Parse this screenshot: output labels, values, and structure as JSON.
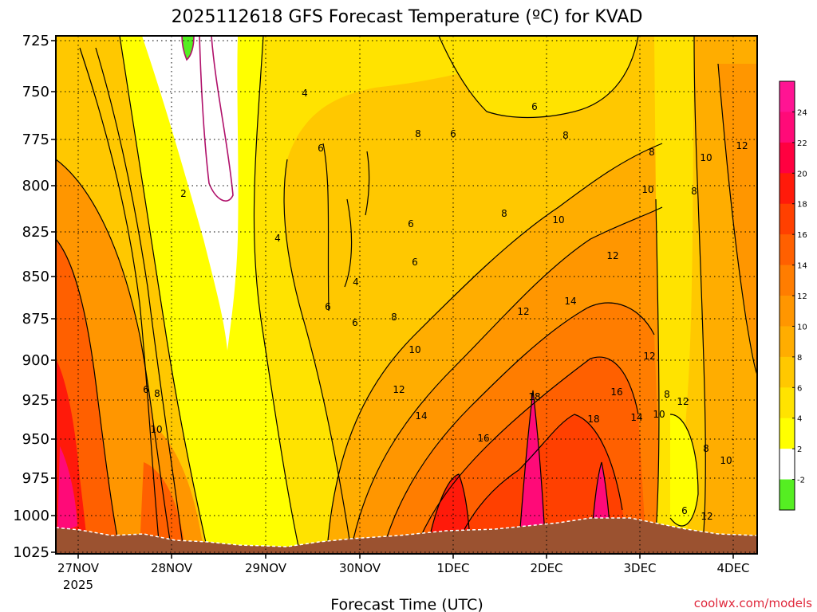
{
  "chart_data": {
    "type": "heatmap",
    "title": "2025112618 GFS Forecast Temperature (ºC) for KVAD",
    "xlabel": "Forecast Time (UTC)",
    "ylabel": "",
    "y_ticks": [
      "725",
      "750",
      "775",
      "800",
      "825",
      "850",
      "875",
      "900",
      "925",
      "950",
      "975",
      "1000",
      "1025"
    ],
    "x_ticks": [
      "27NOV",
      "28NOV",
      "29NOV",
      "30NOV",
      "1DEC",
      "2DEC",
      "3DEC",
      "4DEC"
    ],
    "x_year": "2025",
    "colorbar": {
      "labels": [
        "-2",
        "2",
        "4",
        "6",
        "8",
        "10",
        "12",
        "14",
        "16",
        "18",
        "20",
        "22",
        "24"
      ],
      "colors": [
        "#55ee22",
        "#ffffff",
        "#ffff00",
        "#ffe300",
        "#ffc800",
        "#ffad00",
        "#ff9600",
        "#ff7d00",
        "#ff6000",
        "#ff4000",
        "#ff1a0a",
        "#ff0040",
        "#ff0a78",
        "#ff1493"
      ]
    },
    "contour_labels": [
      "2",
      "4",
      "4",
      "4",
      "6",
      "6",
      "6",
      "6",
      "6",
      "6",
      "6",
      "6",
      "8",
      "8",
      "8",
      "8",
      "8",
      "8",
      "8",
      "8",
      "10",
      "10",
      "10",
      "10",
      "10",
      "10",
      "12",
      "12",
      "12",
      "12",
      "12",
      "12",
      "14",
      "14",
      "14",
      "16",
      "16",
      "18",
      "18",
      "6",
      "8",
      "10",
      "12"
    ],
    "credit": "coolwx.com/models"
  }
}
